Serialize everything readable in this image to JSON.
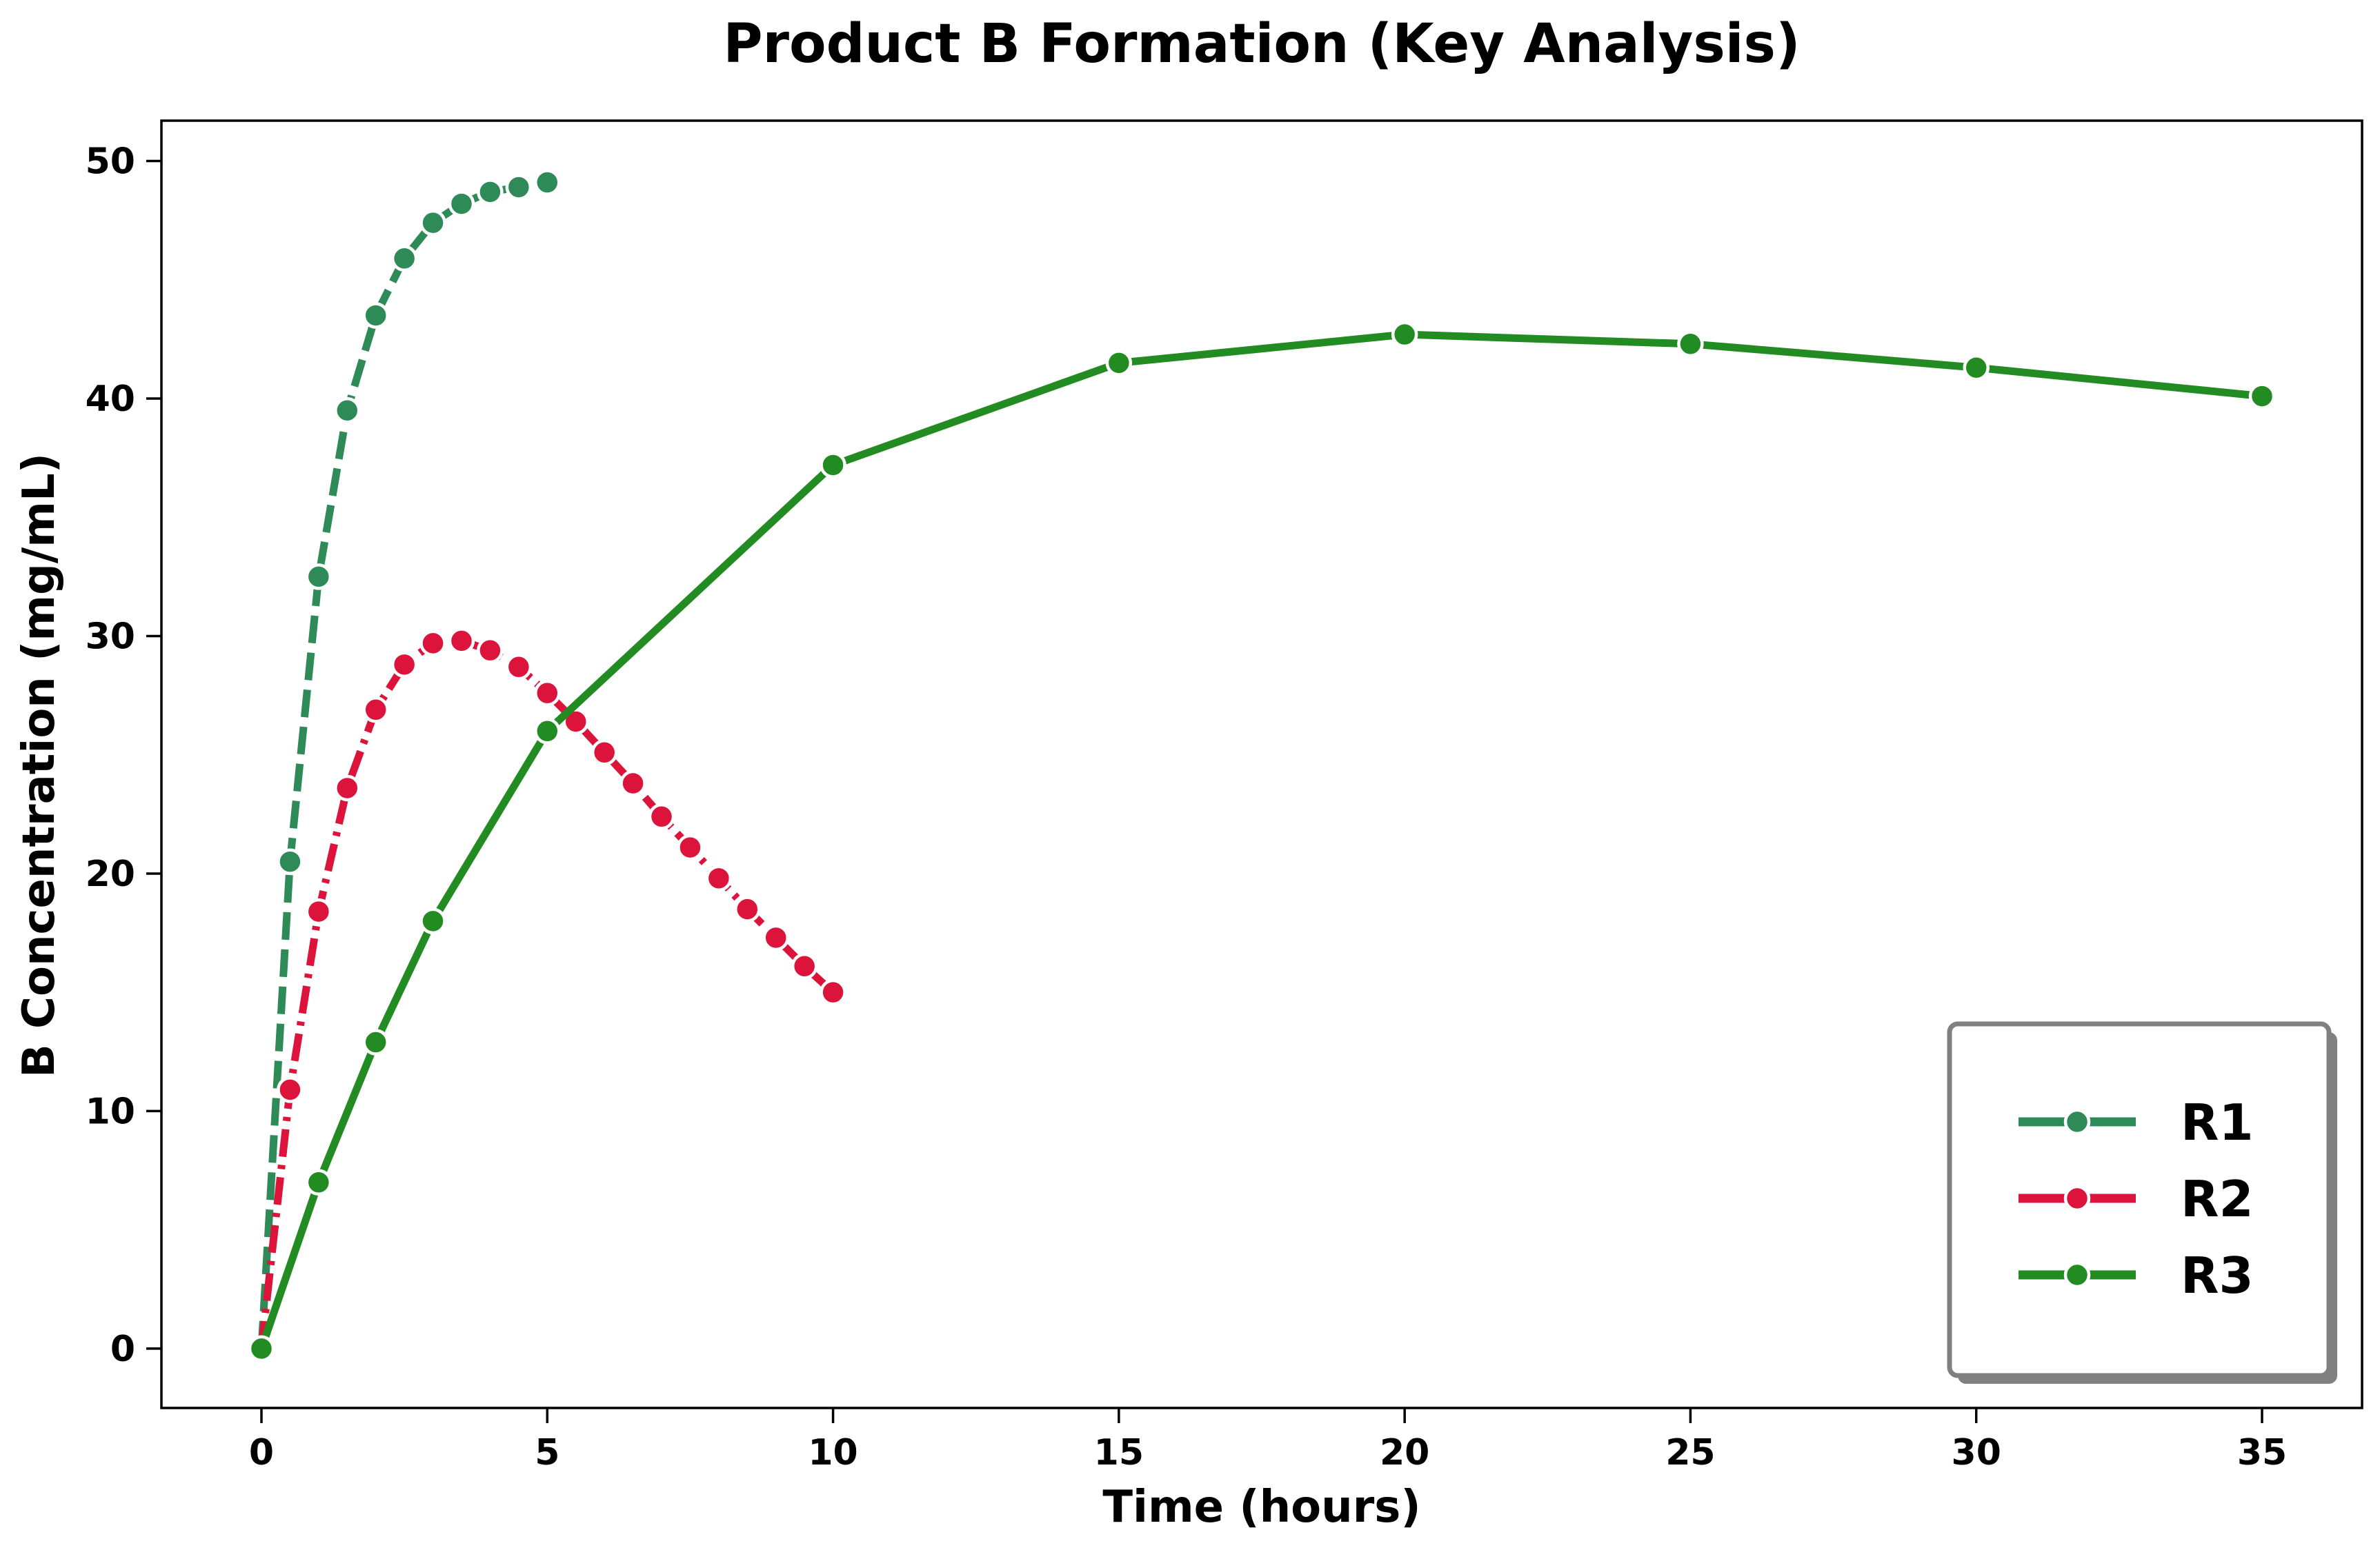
{
  "chart_data": {
    "type": "line",
    "title": "Product B Formation (Key Analysis)",
    "xlabel": "Time (hours)",
    "ylabel": "B Concentration (mg/mL)",
    "xlim": [
      -1.75,
      36.75
    ],
    "ylim": [
      -2.5,
      51.7
    ],
    "xticks": [
      0,
      5,
      10,
      15,
      20,
      25,
      30,
      35
    ],
    "yticks": [
      0,
      10,
      20,
      30,
      40,
      50
    ],
    "grid": false,
    "legend_position": "lower-right",
    "series": [
      {
        "name": "R1",
        "color": "#2e8b57",
        "line_style": "dashed",
        "x": [
          0,
          0.5,
          1,
          1.5,
          2,
          2.5,
          3,
          3.5,
          4,
          4.5,
          5
        ],
        "y": [
          0,
          20.5,
          32.5,
          39.5,
          43.5,
          45.9,
          47.4,
          48.2,
          48.7,
          48.9,
          49.1
        ]
      },
      {
        "name": "R2",
        "color": "#dc143c",
        "line_style": "dashdot",
        "x": [
          0,
          0.5,
          1,
          1.5,
          2,
          2.5,
          3,
          3.5,
          4,
          4.5,
          5,
          5.5,
          6,
          6.5,
          7,
          7.5,
          8,
          8.5,
          9,
          9.5,
          10
        ],
        "y": [
          0,
          10.9,
          18.4,
          23.6,
          26.9,
          28.8,
          29.7,
          29.8,
          29.4,
          28.7,
          27.6,
          26.4,
          25.1,
          23.8,
          22.4,
          21.1,
          19.8,
          18.5,
          17.3,
          16.1,
          15.0
        ]
      },
      {
        "name": "R3",
        "color": "#228b22",
        "line_style": "solid",
        "x": [
          0,
          1,
          2,
          3,
          5,
          10,
          15,
          20,
          25,
          30,
          35
        ],
        "y": [
          0,
          7.0,
          12.9,
          18.0,
          26.0,
          37.2,
          41.5,
          42.7,
          42.3,
          41.3,
          40.1
        ]
      }
    ]
  }
}
